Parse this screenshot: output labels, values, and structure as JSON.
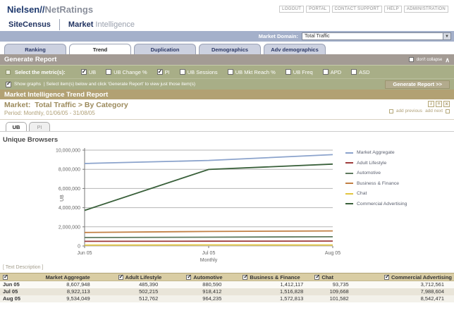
{
  "header": {
    "brand_primary": "Nielsen//",
    "brand_secondary": "NetRatings",
    "links": [
      "LOGOUT",
      "PORTAL",
      "CONTACT SUPPORT",
      "HELP",
      "ADMINISTRATION"
    ],
    "product_left": "SiteCensus",
    "product_right_bold": "Market",
    "product_right_light": "Intelligence",
    "market_domain": {
      "label": "Market Domain:",
      "value": "Total Traffic"
    }
  },
  "nav_tabs": [
    {
      "label": "Ranking",
      "active": false
    },
    {
      "label": "Trend",
      "active": true
    },
    {
      "label": "Duplication",
      "active": false
    },
    {
      "label": "Demographics",
      "active": false
    },
    {
      "label": "Adv demographics",
      "active": false
    }
  ],
  "generate_report": {
    "title": "Generate Report",
    "dont_collapse_label": "don't collapse",
    "dont_collapse_checked": false,
    "metrics_label": "Select the metric(s):",
    "metrics": [
      {
        "label": "UB",
        "checked": true
      },
      {
        "label": "UB Change %",
        "checked": false
      },
      {
        "label": "PI",
        "checked": true
      },
      {
        "label": "UB Sessions",
        "checked": false
      },
      {
        "label": "UB Mkt Reach %",
        "checked": false
      },
      {
        "label": "UB Freq",
        "checked": false
      },
      {
        "label": "APD",
        "checked": false
      },
      {
        "label": "ASD",
        "checked": false
      }
    ],
    "show_graphs_label": "Show graphs",
    "show_graphs_checked": true,
    "show_graphs_hint": "|  Select item(s) below and click 'Generate Report' to view just those item(s)",
    "button_label": "Generate Report >>"
  },
  "report": {
    "title": "Market Intelligence Trend Report",
    "market_label": "Market:",
    "market_value": "Total Traffic > By Category",
    "period_line": "Period: Monthly, 01/06/05 - 31/08/05",
    "add_previous": "add previous",
    "add_next": "add next",
    "metric_tabs": [
      {
        "label": "UB",
        "active": true
      },
      {
        "label": "PI",
        "active": false
      }
    ],
    "chart_title": "Unique Browsers",
    "text_description": "[ Text Description ]"
  },
  "chart_data": {
    "type": "line",
    "title": "Unique Browsers",
    "xlabel": "Monthly",
    "ylabel": "UB",
    "x": [
      "Jun 05",
      "Jul 05",
      "Aug 05"
    ],
    "ylim": [
      0,
      10000000
    ],
    "ytick_interval": 2000000,
    "ytick_labels": [
      "0",
      "2,000,000",
      "4,000,000",
      "6,000,000",
      "8,000,000",
      "10,000,000"
    ],
    "grid": true,
    "legend_position": "right",
    "series": [
      {
        "name": "Market Aggregate",
        "color": "#8ba3cc",
        "values": [
          8607948,
          8922113,
          9534049
        ]
      },
      {
        "name": "Adult Lifestyle",
        "color": "#9e3b3b",
        "values": [
          485390,
          502215,
          512762
        ]
      },
      {
        "name": "Automotive",
        "color": "#5e7a5e",
        "values": [
          880590,
          918412,
          964235
        ]
      },
      {
        "name": "Business & Finance",
        "color": "#c18044",
        "values": [
          1412117,
          1516828,
          1572813
        ]
      },
      {
        "name": "Chat",
        "color": "#e3c53f",
        "values": [
          93735,
          109668,
          101582
        ]
      },
      {
        "name": "Commercial Advertising",
        "color": "#39603a",
        "values": [
          3712561,
          7988604,
          8542471
        ]
      }
    ]
  },
  "table": {
    "select_all_checked": true,
    "columns": [
      {
        "label": "Market Aggregate",
        "checked": false
      },
      {
        "label": "Adult Lifestyle",
        "checked": true
      },
      {
        "label": "Automotive",
        "checked": true
      },
      {
        "label": "Business & Finance",
        "checked": true
      },
      {
        "label": "Chat",
        "checked": true
      },
      {
        "label": "Commercial Advertising",
        "checked": true
      }
    ],
    "rows": [
      {
        "label": "Jun 05",
        "values": [
          "8,607,948",
          "485,390",
          "880,590",
          "1,412,117",
          "93,735",
          "3,712,561"
        ]
      },
      {
        "label": "Jul 05",
        "values": [
          "8,922,113",
          "502,215",
          "918,412",
          "1,516,828",
          "109,668",
          "7,988,604"
        ]
      },
      {
        "label": "Aug 05",
        "values": [
          "9,534,049",
          "512,762",
          "964,235",
          "1,572,813",
          "101,582",
          "8,542,471"
        ]
      }
    ]
  }
}
